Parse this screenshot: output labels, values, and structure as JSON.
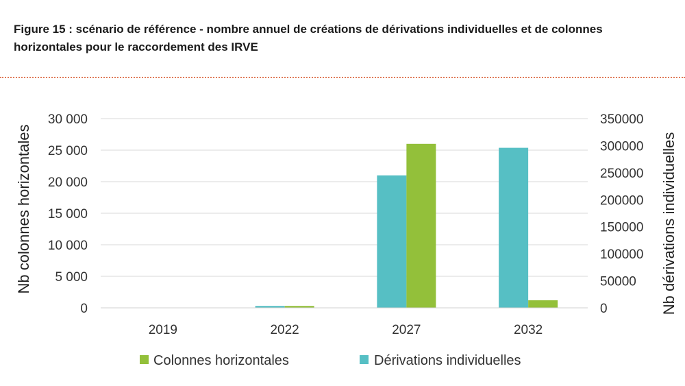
{
  "figure": {
    "title": "Figure 15 : scénario de référence - nombre annuel de créations de dérivations individuelles et de colonnes horizontales pour le raccordement des IRVE"
  },
  "chart_data": {
    "type": "bar",
    "categories": [
      "2019",
      "2022",
      "2027",
      "2032"
    ],
    "series": [
      {
        "name": "Dérivations individuelles",
        "axis": "right",
        "color": "#56bfc4",
        "values": [
          0,
          3500,
          245000,
          296000
        ]
      },
      {
        "name": "Colonnes horizontales",
        "axis": "left",
        "color": "#93c03a",
        "values": [
          0,
          300,
          26000,
          1200
        ]
      }
    ],
    "ylabel_left": "Nb colonnes horizontales",
    "ylim_left": [
      0,
      30000
    ],
    "yticks_left": [
      "0",
      "5 000",
      "10 000",
      "15 000",
      "20 000",
      "25 000",
      "30 000"
    ],
    "ylabel_right": "Nb dérivations individuelles",
    "ylim_right": [
      0,
      350000
    ],
    "yticks_right": [
      "0",
      "50000",
      "100000",
      "150000",
      "200000",
      "250000",
      "300000",
      "350000"
    ],
    "grid": true,
    "legend_position": "bottom",
    "legend": [
      {
        "label": "Colonnes horizontales",
        "color": "#93c03a"
      },
      {
        "label": "Dérivations individuelles",
        "color": "#56bfc4"
      }
    ]
  }
}
